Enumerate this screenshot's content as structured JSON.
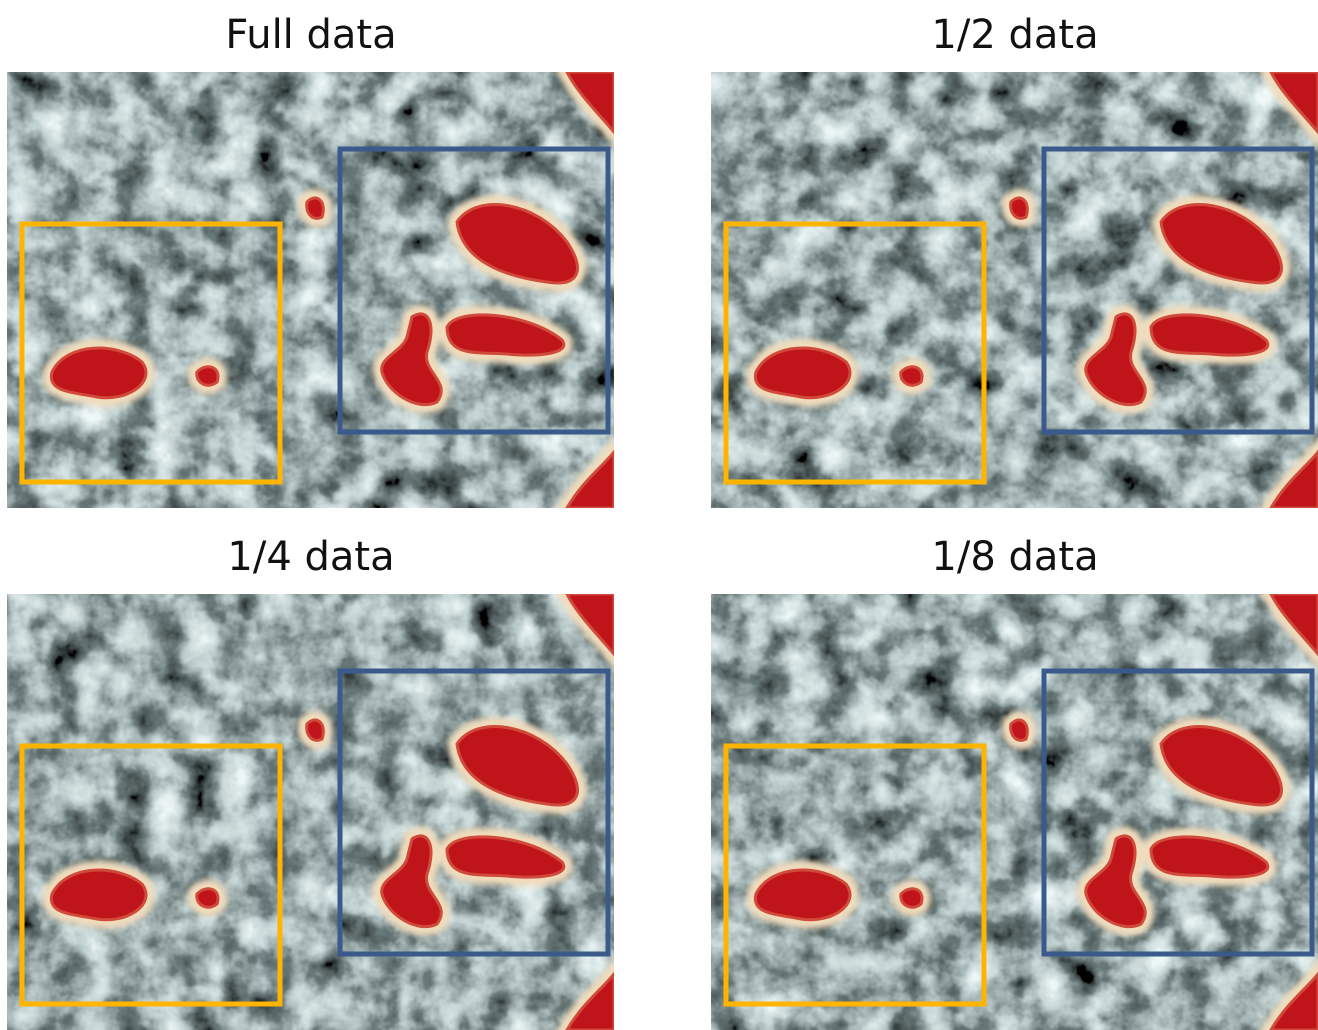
{
  "panels": [
    {
      "title": "Full data"
    },
    {
      "title": "1/2 data"
    },
    {
      "title": "1/4 data"
    },
    {
      "title": "1/8 data"
    }
  ]
}
